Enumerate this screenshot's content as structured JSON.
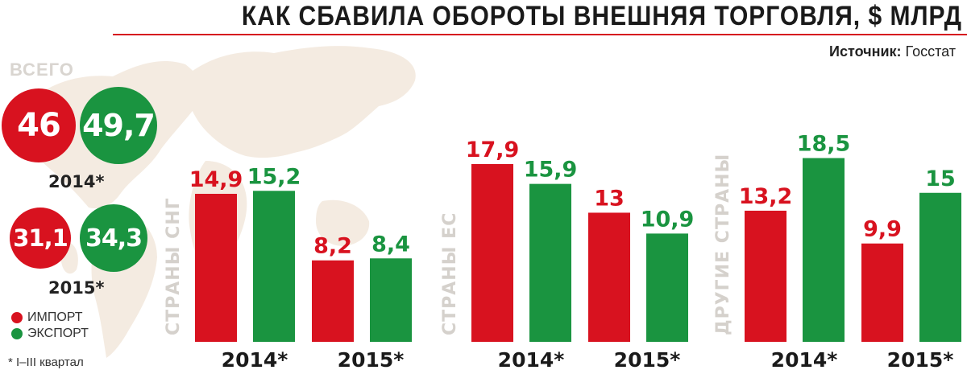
{
  "title": "КАК СБАВИЛА ОБОРОТЫ ВНЕШНЯЯ ТОРГОВЛЯ, $ МЛРД",
  "source": {
    "label": "Источник:",
    "value": "Госстат"
  },
  "colors": {
    "import": "#d8121f",
    "export": "#1a9440"
  },
  "totals": {
    "label": "ВСЕГО",
    "years": [
      {
        "year": "2014*",
        "import": "46",
        "export": "49,7"
      },
      {
        "year": "2015*",
        "import": "31,1",
        "export": "34,3"
      }
    ]
  },
  "legend": {
    "import": "ИМПОРТ",
    "export": "ЭКСПОРТ"
  },
  "footnote": "* I–III квартал",
  "chart_data": [
    {
      "type": "bar",
      "title": "СТРАНЫ СНГ",
      "categories": [
        "2014*",
        "2015*"
      ],
      "series": [
        {
          "name": "ИМПОРТ",
          "values": [
            14.9,
            8.2
          ],
          "labels": [
            "14,9",
            "8,2"
          ]
        },
        {
          "name": "ЭКСПОРТ",
          "values": [
            15.2,
            8.4
          ],
          "labels": [
            "15,2",
            "8,4"
          ]
        }
      ]
    },
    {
      "type": "bar",
      "title": "СТРАНЫ ЕС",
      "categories": [
        "2014*",
        "2015*"
      ],
      "series": [
        {
          "name": "ИМПОРТ",
          "values": [
            17.9,
            13
          ],
          "labels": [
            "17,9",
            "13"
          ]
        },
        {
          "name": "ЭКСПОРТ",
          "values": [
            15.9,
            10.9
          ],
          "labels": [
            "15,9",
            "10,9"
          ]
        }
      ]
    },
    {
      "type": "bar",
      "title": "ДРУГИЕ СТРАНЫ",
      "categories": [
        "2014*",
        "2015*"
      ],
      "series": [
        {
          "name": "ИМПОРТ",
          "values": [
            13.2,
            9.9
          ],
          "labels": [
            "13,2",
            "9,9"
          ]
        },
        {
          "name": "ЭКСПОРТ",
          "values": [
            18.5,
            15
          ],
          "labels": [
            "18,5",
            "15"
          ]
        }
      ]
    }
  ]
}
